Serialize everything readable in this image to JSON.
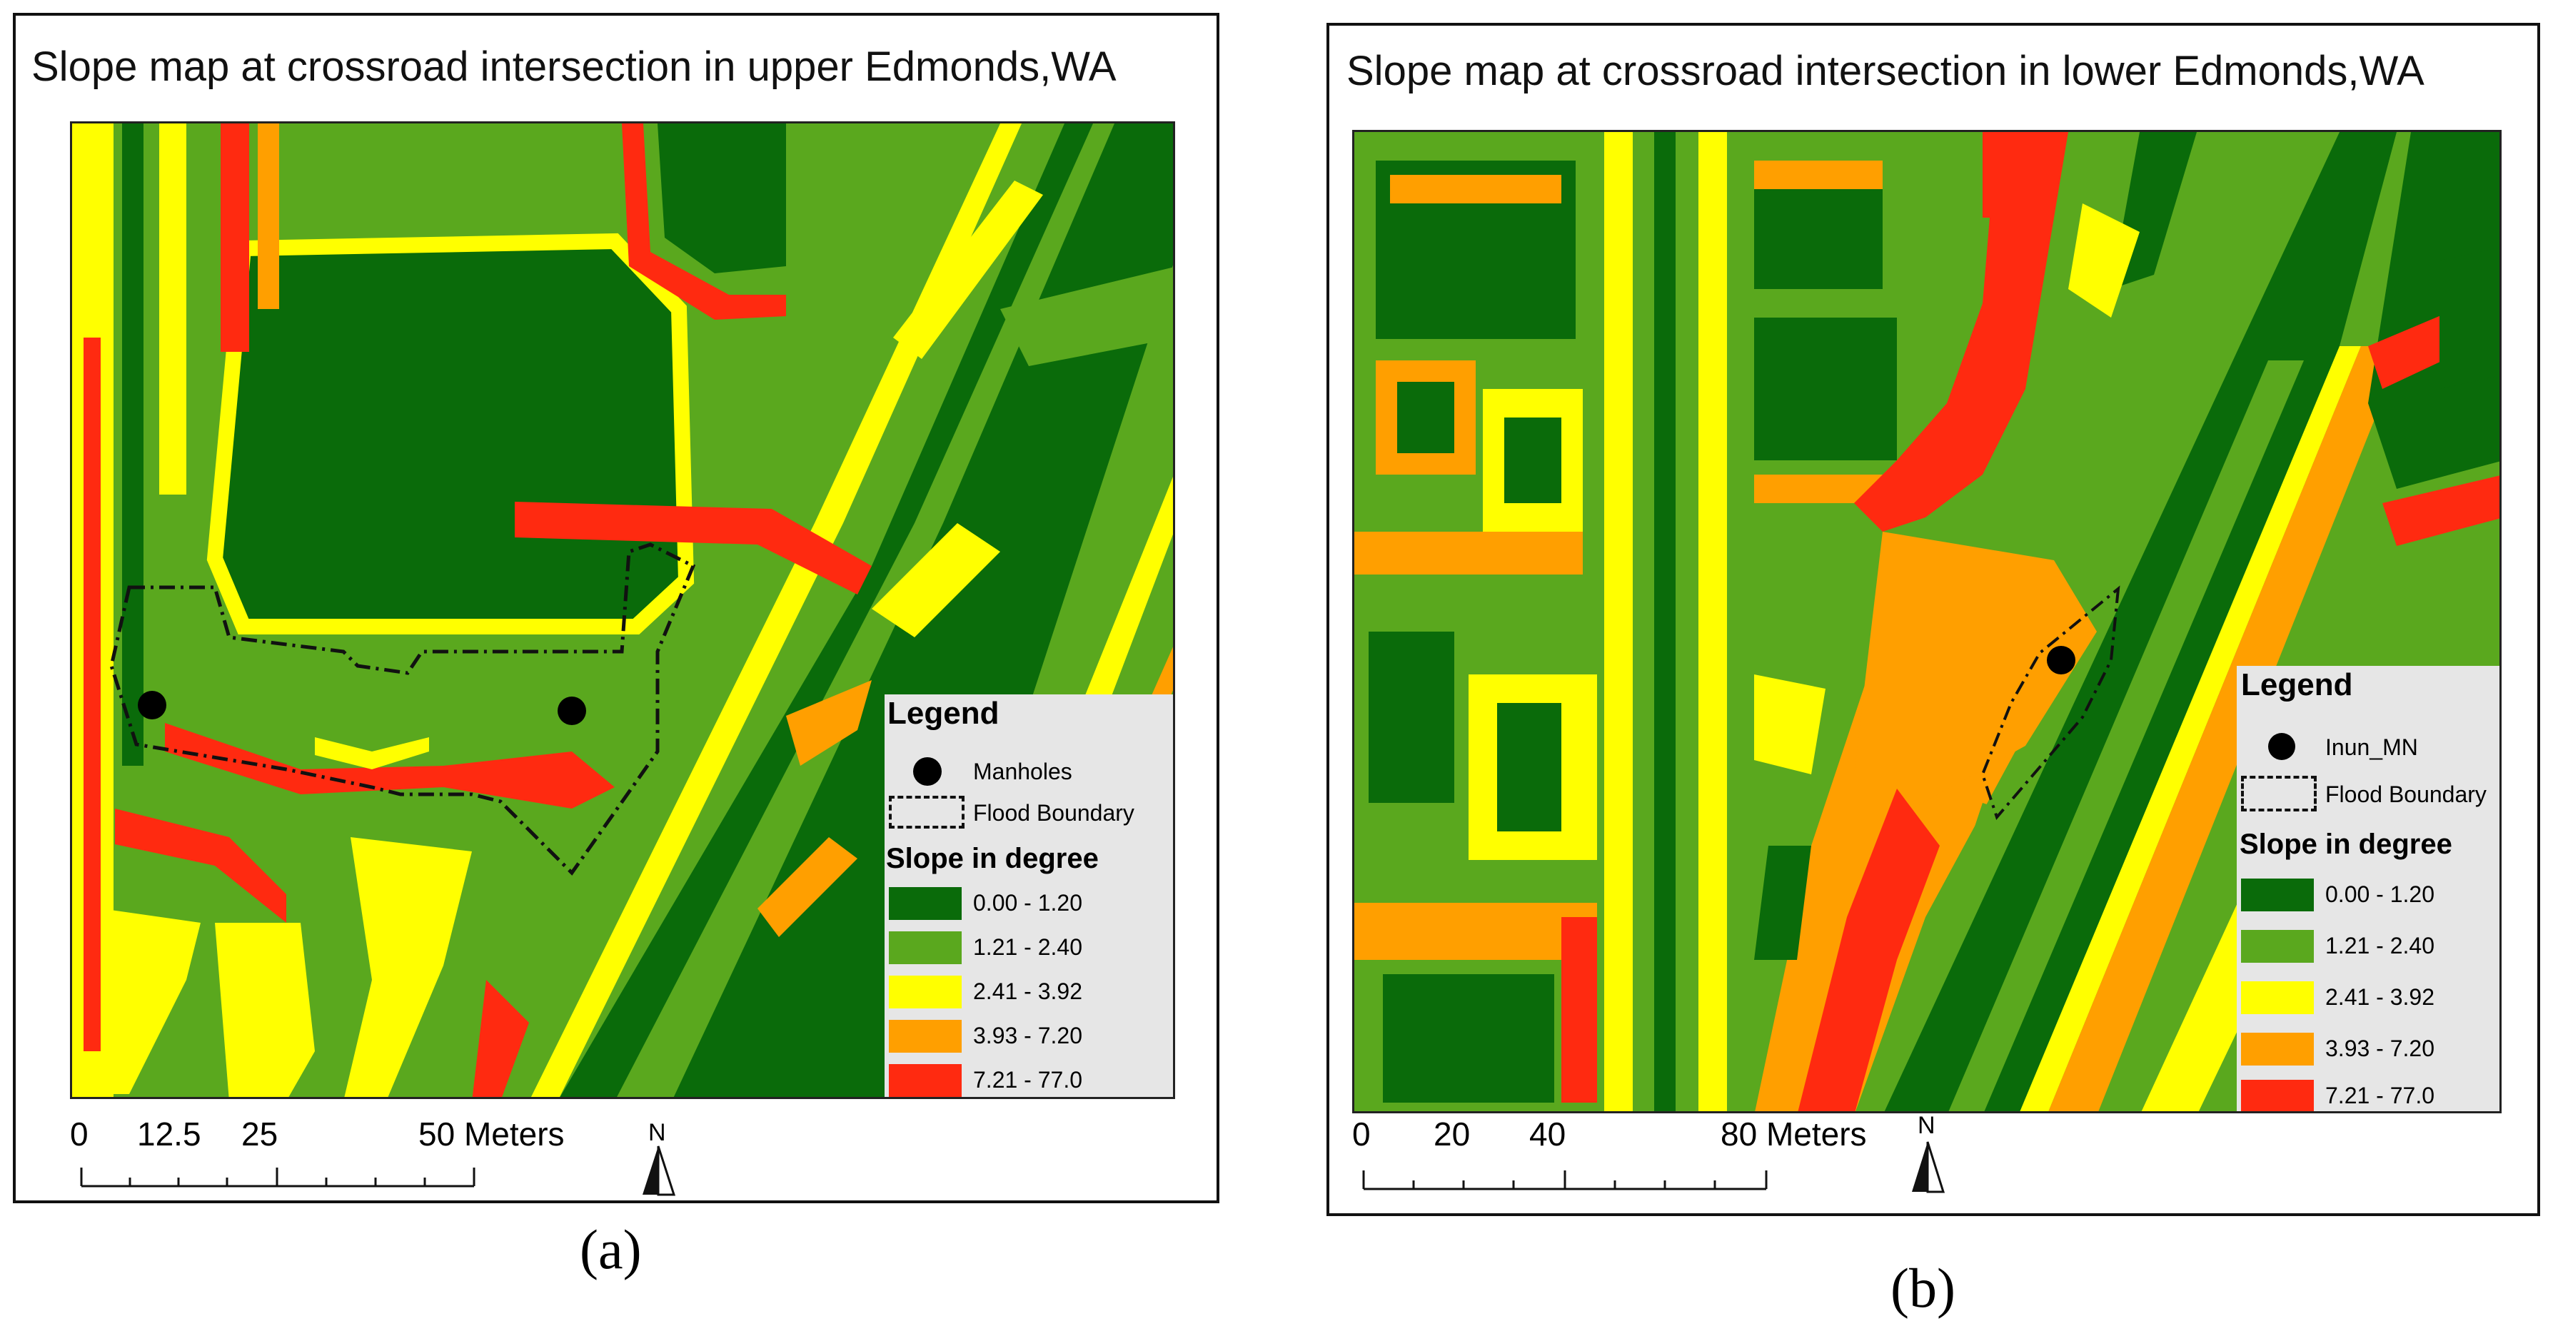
{
  "panel_a": {
    "title": "Slope map at crossroad intersection in upper Edmonds,WA",
    "legend": {
      "title": "Legend",
      "point_label": "Manholes",
      "boundary_label": "Flood Boundary",
      "slope_title": "Slope in degree",
      "classes": [
        {
          "label": "0.00 - 1.20",
          "color": "#0a6b0a"
        },
        {
          "label": "1.21 - 2.40",
          "color": "#5aa81e"
        },
        {
          "label": "2.41 - 3.92",
          "color": "#ffff00"
        },
        {
          "label": "3.93 - 7.20",
          "color": "#ff9f00"
        },
        {
          "label": "7.21 - 77.0",
          "color": "#ff2a10"
        }
      ]
    },
    "scale": {
      "ticks": [
        "0",
        "12.5",
        "25",
        "50 Meters"
      ]
    },
    "north_label": "N",
    "caption": "(a)"
  },
  "panel_b": {
    "title": "Slope map at crossroad intersection in lower Edmonds,WA",
    "legend": {
      "title": "Legend",
      "point_label": "Inun_MN",
      "boundary_label": "Flood Boundary",
      "slope_title": "Slope in degree",
      "classes": [
        {
          "label": "0.00 - 1.20",
          "color": "#0a6b0a"
        },
        {
          "label": "1.21 - 2.40",
          "color": "#5aa81e"
        },
        {
          "label": "2.41 - 3.92",
          "color": "#ffff00"
        },
        {
          "label": "3.93 - 7.20",
          "color": "#ff9f00"
        },
        {
          "label": "7.21 - 77.0",
          "color": "#ff2a10"
        }
      ]
    },
    "scale": {
      "ticks": [
        "0",
        "20",
        "40",
        "80 Meters"
      ]
    },
    "north_label": "N",
    "caption": "(b)"
  }
}
